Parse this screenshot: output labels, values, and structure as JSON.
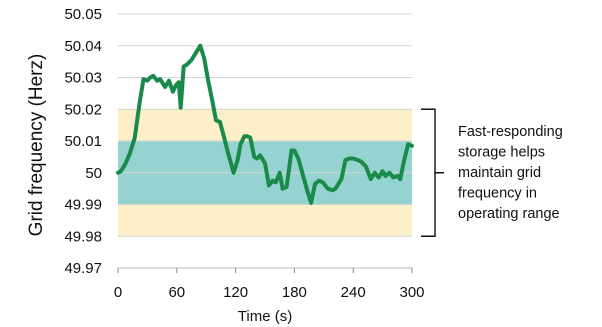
{
  "chart_data": {
    "type": "line",
    "xlabel": "Time (s)",
    "ylabel": "Grid frequency (Herz)",
    "xlim": [
      0,
      300
    ],
    "ylim": [
      49.97,
      50.05
    ],
    "xticks": [
      0,
      60,
      120,
      180,
      240,
      300
    ],
    "yticks": [
      49.97,
      49.98,
      49.99,
      50,
      50.01,
      50.02,
      50.03,
      50.04,
      50.05
    ],
    "ytick_labels": [
      "49.97",
      "49.98",
      "49.99",
      "50",
      "50.01",
      "50.02",
      "50.03",
      "50.04",
      "50.05"
    ],
    "grid": "horizontal",
    "bands": [
      {
        "from": 49.98,
        "to": 50.02,
        "color": "#fdf0c8"
      },
      {
        "from": 49.99,
        "to": 50.01,
        "color": "#95d3d0"
      }
    ],
    "series": [
      {
        "color": "#1a8a4a",
        "x": [
          0,
          3,
          7,
          12,
          17,
          22,
          26,
          30,
          33,
          36,
          40,
          43,
          48,
          52,
          56,
          59,
          62,
          64,
          67,
          70,
          75,
          80,
          84,
          88,
          92,
          96,
          100,
          104,
          108,
          112,
          118,
          122,
          125,
          129,
          132,
          135,
          139,
          142,
          145,
          150,
          154,
          158,
          161,
          165,
          168,
          172,
          177,
          180,
          184,
          189,
          193,
          197,
          201,
          205,
          209,
          214,
          219,
          222,
          228,
          232,
          236,
          240,
          245,
          248,
          253,
          258,
          262,
          266,
          270,
          273,
          277,
          281,
          285,
          288,
          292,
          296,
          300
        ],
        "y": [
          50.0,
          50.0005,
          50.0025,
          50.006,
          50.011,
          50.022,
          50.0295,
          50.029,
          50.03,
          50.0305,
          50.029,
          50.0295,
          50.027,
          50.029,
          50.0255,
          50.0275,
          50.0285,
          50.0205,
          50.0335,
          50.034,
          50.0355,
          50.038,
          50.04,
          50.036,
          50.029,
          50.023,
          50.0165,
          50.016,
          50.0115,
          50.0065,
          50.0,
          50.004,
          50.009,
          50.0115,
          50.0115,
          50.011,
          50.005,
          50.0045,
          50.0055,
          50.003,
          49.996,
          49.9975,
          49.997,
          50.0,
          49.995,
          49.9955,
          50.007,
          50.007,
          50.0045,
          49.999,
          49.9945,
          49.9905,
          49.9965,
          49.9975,
          49.997,
          49.995,
          49.9945,
          49.995,
          49.998,
          50.004,
          50.0045,
          50.0045,
          50.004,
          50.0035,
          50.002,
          49.998,
          50.0,
          49.9985,
          50.0005,
          49.999,
          50.0,
          49.9985,
          49.999,
          49.998,
          50.004,
          50.009,
          50.0085
        ]
      }
    ],
    "annotation": {
      "text_lines": [
        "Fast-responding",
        "storage helps",
        "maintain grid",
        "frequency in",
        "operating range"
      ],
      "bracket_from": 49.98,
      "bracket_to": 50.02
    }
  }
}
